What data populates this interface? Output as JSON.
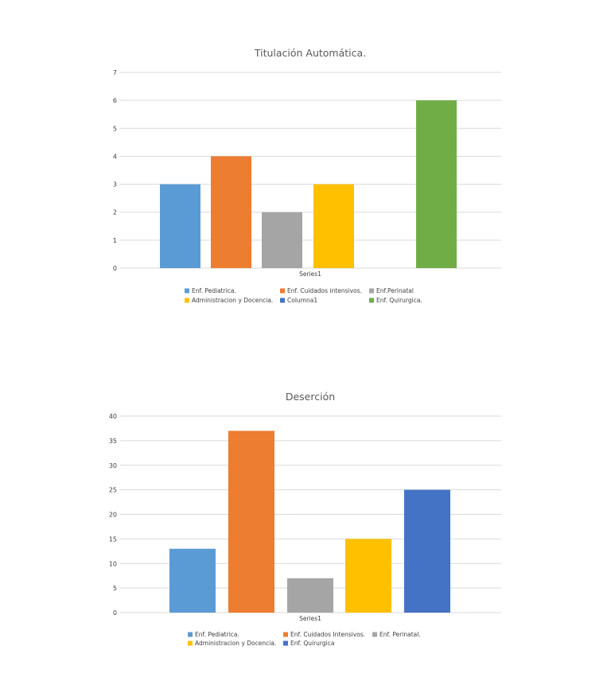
{
  "chart_data": [
    {
      "type": "bar",
      "title": "Titulación Automática.",
      "categories": [
        "Series1"
      ],
      "ylim": [
        0,
        7
      ],
      "yticks": [
        0,
        1,
        2,
        3,
        4,
        5,
        6,
        7
      ],
      "grid": true,
      "legend_position": "bottom",
      "series": [
        {
          "name": "Enf. Pediatrica.",
          "values": [
            3
          ],
          "color": "#5b9bd5"
        },
        {
          "name": "Enf. Cuidados intensivos.",
          "values": [
            4
          ],
          "color": "#ed7d31"
        },
        {
          "name": "Enf.Perinatal",
          "values": [
            2
          ],
          "color": "#a5a5a5"
        },
        {
          "name": "Administracion y Docencia.",
          "values": [
            3
          ],
          "color": "#ffc000"
        },
        {
          "name": "Columna1",
          "values": [
            0
          ],
          "color": "#4472c4"
        },
        {
          "name": "Enf. Quirurgica.",
          "values": [
            6
          ],
          "color": "#70ad47"
        }
      ]
    },
    {
      "type": "bar",
      "title": "Deserción",
      "categories": [
        "Series1"
      ],
      "ylim": [
        0,
        40
      ],
      "yticks": [
        0,
        5,
        10,
        15,
        20,
        25,
        30,
        35,
        40
      ],
      "grid": true,
      "legend_position": "bottom",
      "series": [
        {
          "name": "Enf. Pediatrica.",
          "values": [
            13
          ],
          "color": "#5b9bd5"
        },
        {
          "name": "Enf. Cuidados Intensivos.",
          "values": [
            37
          ],
          "color": "#ed7d31"
        },
        {
          "name": "Enf. Perinatal.",
          "values": [
            7
          ],
          "color": "#a5a5a5"
        },
        {
          "name": "Administracion y Docencia.",
          "values": [
            15
          ],
          "color": "#ffc000"
        },
        {
          "name": "Enf. Quirurgica",
          "values": [
            25
          ],
          "color": "#4472c4"
        }
      ]
    }
  ]
}
